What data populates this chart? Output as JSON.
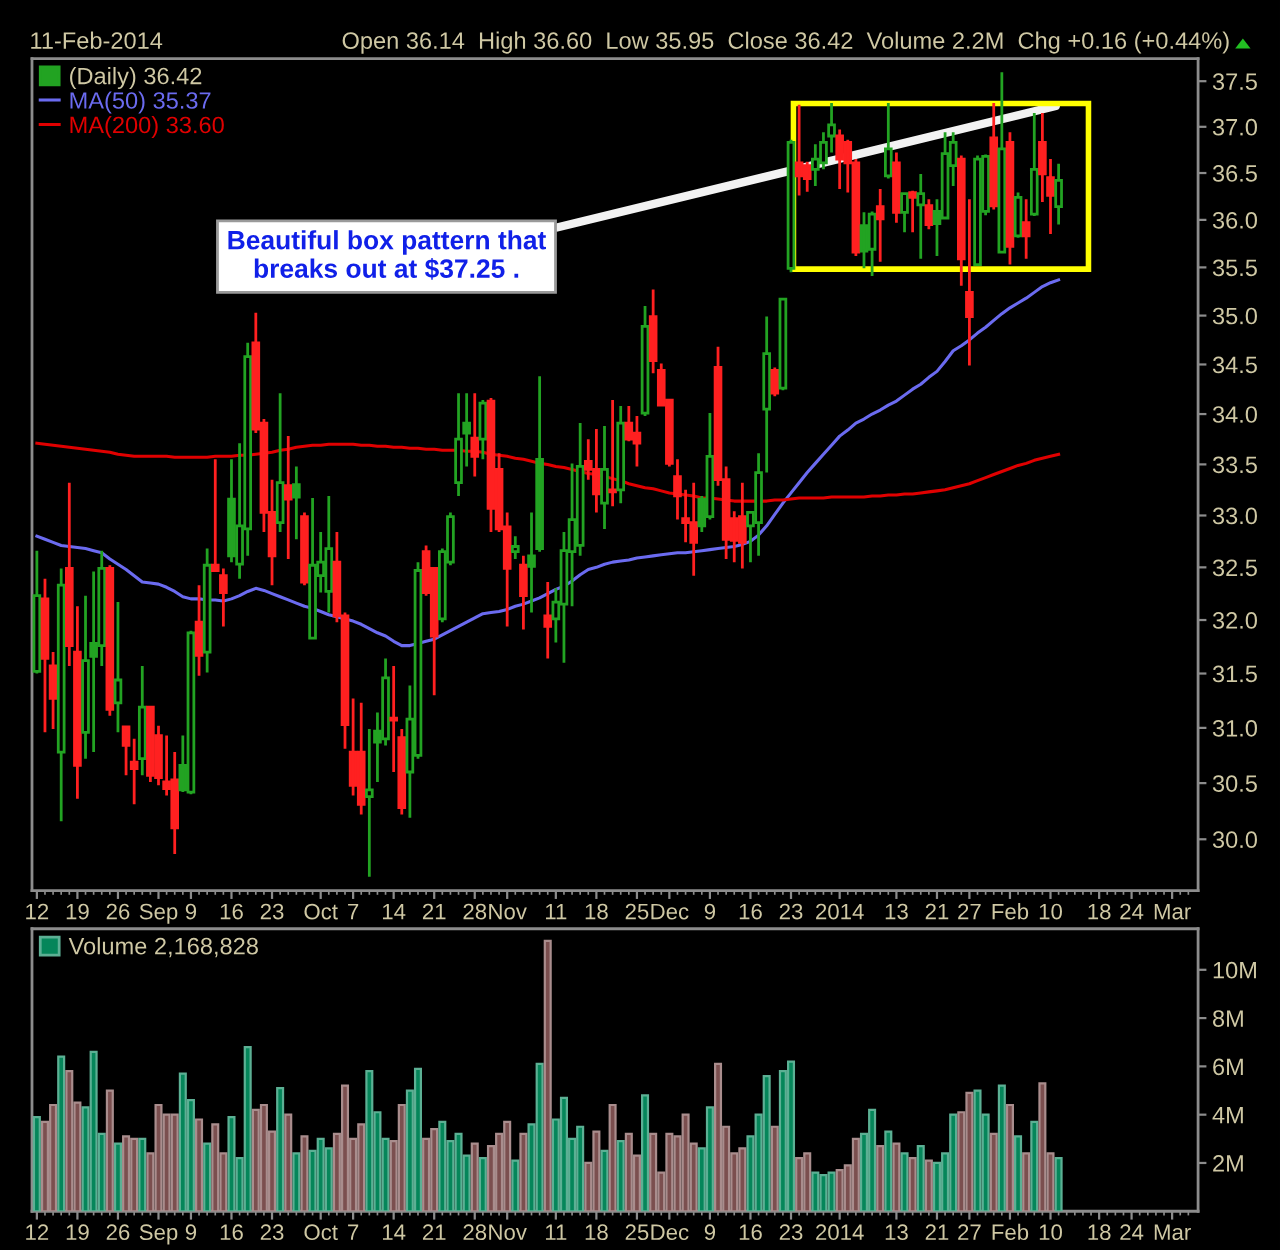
{
  "chart_data": [
    {
      "type": "candlestick",
      "subtitle": "11-Feb-2014",
      "log": true,
      "legend": "top left",
      "annotations": [
        "Open 36.14  High 36.60  Low 35.95  Close 36.42  Volume 2.2M  Chg +0.16 (+0.44%)",
        "Beautiful box pattern that\nbreaks out at $37.25 ."
      ],
      "categories": [
        "12",
        null,
        null,
        null,
        null,
        "19",
        null,
        null,
        null,
        null,
        "26",
        null,
        null,
        null,
        null,
        "Sep",
        null,
        null,
        null,
        "9",
        null,
        null,
        null,
        null,
        "16",
        null,
        null,
        null,
        null,
        "23",
        null,
        null,
        null,
        null,
        null,
        "Oct",
        null,
        null,
        null,
        "7",
        null,
        null,
        null,
        null,
        "14",
        null,
        null,
        null,
        null,
        "21",
        null,
        null,
        null,
        null,
        "28",
        null,
        null,
        null,
        "Nov",
        null,
        null,
        null,
        null,
        null,
        "11",
        null,
        null,
        null,
        null,
        "18",
        null,
        null,
        null,
        null,
        "25",
        null,
        null,
        null,
        "Dec",
        null,
        null,
        null,
        null,
        "9",
        null,
        null,
        null,
        null,
        "16",
        null,
        null,
        null,
        null,
        "23",
        null,
        null,
        null,
        null,
        null,
        "2014",
        null,
        null,
        null,
        null,
        null,
        null,
        "13",
        null,
        null,
        null,
        null,
        "21",
        null,
        null,
        null,
        "27",
        null,
        null,
        null,
        null,
        "Feb",
        null,
        null,
        null,
        null,
        "10",
        null,
        null,
        null,
        null,
        null,
        "18",
        null,
        null,
        null,
        "24",
        null,
        null,
        null,
        null,
        "Mar",
        null,
        null
      ],
      "ylim": [
        29.55,
        37.75
      ],
      "yticks": [
        {
          "value": 30,
          "label": "30.0"
        },
        30.5,
        {
          "value": 31,
          "label": "31.0"
        },
        31.5,
        {
          "value": 32,
          "label": "32.0"
        },
        32.5,
        {
          "value": 33,
          "label": "33.0"
        },
        33.5,
        {
          "value": 34,
          "label": "34.0"
        },
        34.5,
        {
          "value": 35,
          "label": "35.0"
        },
        35.5,
        {
          "value": 36,
          "label": "36.0"
        },
        36.5,
        {
          "value": 37,
          "label": "37.0"
        },
        37.5
      ],
      "series": [
        {
          "type": "candlestick",
          "name": "(Daily) 36.42",
          "ohlc": [
            [
              31.52,
              32.66,
              31.5,
              32.23
            ],
            [
              32.2,
              32.39,
              30.96,
              31.64
            ],
            [
              31.57,
              31.7,
              30.99,
              31.27
            ],
            [
              30.78,
              32.49,
              30.16,
              32.33
            ],
            [
              32.49,
              33.32,
              31.57,
              31.76
            ],
            [
              31.7,
              32.13,
              30.36,
              30.66
            ],
            [
              30.96,
              32.23,
              30.72,
              31.62
            ],
            [
              31.78,
              32.46,
              30.78,
              31.66
            ],
            [
              31.76,
              32.66,
              31.57,
              32.49
            ],
            [
              32.49,
              32.52,
              31.11,
              31.17
            ],
            [
              31.23,
              32.17,
              30.96,
              31.44
            ],
            [
              31.01,
              31.02,
              30.57,
              30.84
            ],
            [
              30.69,
              30.9,
              30.31,
              30.63
            ],
            [
              30.72,
              31.57,
              30.57,
              31.19
            ],
            [
              31.19,
              31.2,
              30.51,
              30.57
            ],
            [
              30.93,
              31.02,
              30.48,
              30.55
            ],
            [
              30.51,
              30.93,
              30.39,
              30.45
            ],
            [
              30.53,
              30.78,
              29.87,
              30.1
            ],
            [
              30.66,
              30.93,
              30.42,
              30.44
            ],
            [
              30.42,
              31.9,
              30.4,
              31.88
            ],
            [
              31.98,
              32.33,
              31.48,
              31.67
            ],
            [
              31.7,
              32.68,
              31.51,
              32.52
            ],
            [
              32.52,
              33.55,
              32.46,
              32.47
            ],
            [
              32.42,
              32.49,
              31.94,
              32.26
            ],
            [
              33.16,
              33.55,
              32.55,
              32.61
            ],
            [
              32.53,
              33.71,
              32.39,
              32.9
            ],
            [
              32.87,
              34.72,
              32.61,
              34.58
            ],
            [
              34.72,
              35.03,
              33.81,
              33.85
            ],
            [
              33.91,
              33.95,
              32.84,
              33.03
            ],
            [
              33.03,
              33.35,
              32.33,
              32.61
            ],
            [
              32.93,
              34.21,
              32.84,
              33.32
            ],
            [
              33.29,
              33.78,
              32.58,
              33.16
            ],
            [
              33.3,
              33.48,
              32.77,
              33.18
            ],
            [
              32.99,
              33.03,
              32.33,
              32.36
            ],
            [
              31.83,
              33.17,
              31.82,
              32.52
            ],
            [
              32.42,
              32.84,
              32.26,
              32.55
            ],
            [
              32.27,
              33.19,
              32.07,
              32.68
            ],
            [
              32.55,
              32.84,
              31.98,
              32.04
            ],
            [
              32.04,
              32.07,
              30.81,
              31.03
            ],
            [
              30.78,
              31.27,
              30.39,
              30.48
            ],
            [
              30.78,
              31.23,
              30.22,
              30.31
            ],
            [
              30.38,
              30.99,
              29.67,
              30.44
            ],
            [
              30.97,
              31.14,
              30.51,
              30.87
            ],
            [
              30.9,
              31.64,
              30.84,
              31.46
            ],
            [
              31.09,
              31.57,
              30.6,
              31.07
            ],
            [
              30.91,
              30.99,
              30.22,
              30.28
            ],
            [
              30.6,
              31.39,
              30.19,
              31.08
            ],
            [
              30.75,
              32.55,
              30.72,
              32.47
            ],
            [
              32.65,
              32.71,
              32.23,
              32.26
            ],
            [
              32.49,
              32.5,
              31.3,
              31.85
            ],
            [
              32.01,
              32.68,
              31.98,
              32.65
            ],
            [
              32.55,
              33.03,
              32.52,
              32.99
            ],
            [
              33.32,
              34.21,
              33.19,
              33.75
            ],
            [
              33.91,
              34.21,
              33.48,
              33.81
            ],
            [
              33.76,
              34.21,
              33.38,
              33.58
            ],
            [
              33.75,
              34.14,
              33.55,
              34.11
            ],
            [
              34.13,
              34.16,
              32.84,
              33.07
            ],
            [
              33.45,
              33.61,
              32.84,
              32.87
            ],
            [
              32.89,
              33.03,
              31.94,
              32.49
            ],
            [
              32.65,
              32.8,
              32.58,
              32.7
            ],
            [
              32.52,
              32.61,
              31.91,
              32.23
            ],
            [
              32.61,
              33.03,
              32.07,
              32.51
            ],
            [
              33.55,
              34.38,
              32.65,
              32.68
            ],
            [
              32.04,
              32.36,
              31.64,
              31.94
            ],
            [
              32.01,
              32.3,
              31.79,
              32.17
            ],
            [
              32.15,
              32.84,
              31.6,
              32.66
            ],
            [
              32.65,
              33.51,
              32.13,
              32.96
            ],
            [
              32.71,
              33.91,
              32.61,
              33.48
            ],
            [
              33.53,
              33.75,
              33.35,
              33.45
            ],
            [
              33.45,
              33.85,
              33.03,
              33.21
            ],
            [
              33.12,
              33.88,
              32.87,
              33.45
            ],
            [
              33.25,
              34.14,
              33.09,
              33.23
            ],
            [
              33.25,
              34.08,
              33.12,
              33.91
            ],
            [
              33.91,
              34.08,
              33.73,
              33.75
            ],
            [
              33.81,
              33.98,
              33.48,
              33.71
            ],
            [
              34.01,
              35.1,
              33.98,
              34.89
            ],
            [
              34.99,
              35.27,
              34.41,
              34.54
            ],
            [
              34.44,
              34.51,
              34.08,
              34.09
            ],
            [
              34.14,
              34.15,
              33.48,
              33.51
            ],
            [
              33.38,
              33.55,
              32.96,
              33.19
            ],
            [
              32.97,
              33.25,
              32.74,
              32.93
            ],
            [
              32.93,
              33.32,
              32.42,
              32.74
            ],
            [
              33.16,
              33.19,
              32.84,
              32.9
            ],
            [
              32.99,
              34.01,
              32.96,
              33.58
            ],
            [
              34.47,
              34.68,
              33.29,
              33.35
            ],
            [
              33.35,
              33.48,
              32.58,
              32.77
            ],
            [
              32.97,
              33.04,
              32.55,
              32.76
            ],
            [
              32.99,
              33.32,
              32.49,
              32.74
            ],
            [
              32.9,
              33.03,
              32.55,
              33.03
            ],
            [
              32.93,
              33.61,
              32.61,
              33.42
            ],
            [
              34.05,
              34.99,
              33.42,
              34.61
            ],
            [
              34.44,
              34.47,
              34.18,
              34.21
            ],
            [
              34.26,
              35.18,
              34.24,
              35.17
            ],
            [
              35.49,
              36.86,
              35.45,
              36.83
            ],
            [
              36.61,
              37.24,
              36.26,
              36.47
            ],
            [
              36.58,
              36.62,
              36.3,
              36.44
            ],
            [
              36.54,
              36.81,
              36.36,
              36.65
            ],
            [
              36.61,
              36.94,
              36.54,
              36.83
            ],
            [
              36.9,
              37.26,
              36.72,
              37.02
            ],
            [
              36.9,
              36.97,
              36.33,
              36.65
            ],
            [
              36.83,
              36.86,
              36.29,
              36.61
            ],
            [
              36.61,
              36.65,
              35.62,
              35.66
            ],
            [
              35.94,
              36.08,
              35.49,
              35.67
            ],
            [
              35.69,
              36.09,
              35.41,
              36.06
            ],
            [
              36.14,
              36.33,
              35.56,
              36.01
            ],
            [
              36.47,
              37.26,
              36.44,
              36.76
            ],
            [
              36.61,
              36.72,
              35.97,
              36.08
            ],
            [
              36.08,
              36.29,
              35.87,
              36.28
            ],
            [
              36.29,
              36.31,
              35.87,
              36.24
            ],
            [
              36.16,
              36.49,
              35.59,
              36.28
            ],
            [
              36.15,
              36.22,
              35.9,
              35.95
            ],
            [
              36.09,
              36.22,
              35.62,
              35.96
            ],
            [
              36.02,
              36.94,
              36.01,
              36.71
            ],
            [
              36.58,
              36.94,
              36.36,
              36.83
            ],
            [
              36.65,
              36.69,
              35.31,
              35.59
            ],
            [
              35.24,
              36.22,
              34.49,
              34.99
            ],
            [
              35.53,
              36.69,
              35.52,
              36.65
            ],
            [
              36.09,
              36.7,
              36.05,
              36.68
            ],
            [
              36.88,
              37.26,
              36.11,
              36.15
            ],
            [
              35.66,
              37.6,
              35.66,
              36.76
            ],
            [
              36.83,
              36.94,
              35.53,
              35.72
            ],
            [
              35.83,
              36.29,
              35.81,
              36.24
            ],
            [
              35.97,
              36.22,
              35.59,
              35.83
            ],
            [
              36.06,
              37.15,
              36.04,
              36.54
            ],
            [
              36.83,
              37.15,
              36.19,
              36.49
            ],
            [
              36.45,
              36.65,
              35.85,
              36.26
            ],
            [
              36.14,
              36.6,
              35.95,
              36.42
            ],
            null,
            null,
            null,
            null,
            null,
            null,
            null,
            null,
            null,
            null,
            null,
            null,
            null,
            null,
            null,
            null
          ],
          "colors": [
            "#22a322",
            "#ff2020",
            "#ff2020",
            "#22a322",
            "#ff2020",
            "#ff2020",
            "#22a322",
            "#22a322",
            "#22a322",
            "#ff2020",
            "#22a322",
            "#ff2020",
            "#ff2020",
            "#22a322",
            "#ff2020",
            "#ff2020",
            "#ff2020",
            "#ff2020",
            "#22a322",
            "#22a322",
            "#ff2020",
            "#22a322",
            "#ff2020",
            "#ff2020",
            "#22a322",
            "#22a322",
            "#22a322",
            "#ff2020",
            "#ff2020",
            "#ff2020",
            "#22a322",
            "#ff2020",
            "#22a322",
            "#ff2020",
            "#22a322",
            "#22a322",
            "#22a322",
            "#ff2020",
            "#ff2020",
            "#ff2020",
            "#ff2020",
            "#22a322",
            "#22a322",
            "#22a322",
            "#ff2020",
            "#ff2020",
            "#22a322",
            "#22a322",
            "#ff2020",
            "#ff2020",
            "#22a322",
            "#22a322",
            "#22a322",
            "#22a322",
            "#ff2020",
            "#22a322",
            "#ff2020",
            "#ff2020",
            "#ff2020",
            "#22a322",
            "#ff2020",
            "#22a322",
            "#22a322",
            "#ff2020",
            "#22a322",
            "#22a322",
            "#22a322",
            "#22a322",
            "#ff2020",
            "#ff2020",
            "#22a322",
            "#ff2020",
            "#22a322",
            "#ff2020",
            "#ff2020",
            "#22a322",
            "#ff2020",
            "#ff2020",
            "#ff2020",
            "#ff2020",
            "#ff2020",
            "#ff2020",
            "#22a322",
            "#22a322",
            "#ff2020",
            "#ff2020",
            "#ff2020",
            "#ff2020",
            "#22a322",
            "#22a322",
            "#22a322",
            "#ff2020",
            "#22a322",
            "#22a322",
            "#ff2020",
            "#ff2020",
            "#22a322",
            "#22a322",
            "#22a322",
            "#ff2020",
            "#ff2020",
            "#ff2020",
            "#22a322",
            "#22a322",
            "#ff2020",
            "#22a322",
            "#ff2020",
            "#22a322",
            "#ff2020",
            "#22a322",
            "#ff2020",
            "#22a322",
            "#22a322",
            "#22a322",
            "#ff2020",
            "#ff2020",
            "#22a322",
            "#22a322",
            "#ff2020",
            "#22a322",
            "#ff2020",
            "#22a322",
            "#ff2020",
            "#22a322",
            "#ff2020",
            "#ff2020",
            "#22a322",
            null,
            null,
            null,
            null,
            null,
            null,
            null,
            null,
            null,
            null,
            null,
            null,
            null,
            null,
            null,
            null
          ]
        },
        {
          "type": "line",
          "name": "MA(50) 35.37",
          "color": "#6b6bf0",
          "values": [
            32.8,
            32.77,
            32.74,
            32.71,
            32.7,
            32.69,
            32.68,
            32.66,
            32.64,
            32.58,
            32.53,
            32.48,
            32.42,
            32.36,
            32.35,
            32.34,
            32.31,
            32.27,
            32.22,
            32.2,
            32.2,
            32.19,
            32.19,
            32.18,
            32.2,
            32.23,
            32.27,
            32.3,
            32.28,
            32.25,
            32.22,
            32.19,
            32.16,
            32.13,
            32.11,
            32.08,
            32.05,
            32.03,
            32.01,
            31.99,
            31.96,
            31.92,
            31.88,
            31.85,
            31.8,
            31.76,
            31.76,
            31.78,
            31.8,
            31.82,
            31.86,
            31.9,
            31.94,
            31.98,
            32.02,
            32.06,
            32.07,
            32.08,
            32.1,
            32.13,
            32.15,
            32.18,
            32.21,
            32.25,
            32.29,
            32.32,
            32.37,
            32.43,
            32.48,
            32.5,
            32.53,
            32.55,
            32.56,
            32.57,
            32.59,
            32.6,
            32.61,
            32.62,
            32.63,
            32.64,
            32.64,
            32.65,
            32.66,
            32.67,
            32.68,
            32.69,
            32.7,
            32.72,
            32.75,
            32.81,
            32.9,
            33.01,
            33.12,
            33.22,
            33.32,
            33.42,
            33.51,
            33.6,
            33.69,
            33.78,
            33.84,
            33.91,
            33.95,
            34.0,
            34.04,
            34.09,
            34.13,
            34.19,
            34.25,
            34.3,
            34.37,
            34.43,
            34.53,
            34.64,
            34.69,
            34.75,
            34.82,
            34.88,
            34.95,
            35.02,
            35.08,
            35.13,
            35.18,
            35.24,
            35.3,
            35.34,
            35.37,
            null,
            null,
            null,
            null,
            null,
            null,
            null,
            null,
            null,
            null,
            null,
            null,
            null,
            null,
            null,
            null
          ]
        },
        {
          "type": "line",
          "name": "MA(200) 33.60",
          "color": "#e00000",
          "values": [
            33.71,
            33.7,
            33.69,
            33.68,
            33.67,
            33.66,
            33.65,
            33.64,
            33.63,
            33.62,
            33.6,
            33.59,
            33.58,
            33.58,
            33.58,
            33.58,
            33.58,
            33.57,
            33.57,
            33.57,
            33.57,
            33.57,
            33.58,
            33.58,
            33.58,
            33.59,
            33.59,
            33.6,
            33.61,
            33.62,
            33.64,
            33.65,
            33.67,
            33.68,
            33.69,
            33.69,
            33.7,
            33.7,
            33.7,
            33.7,
            33.69,
            33.69,
            33.68,
            33.68,
            33.67,
            33.67,
            33.66,
            33.66,
            33.65,
            33.65,
            33.64,
            33.64,
            33.64,
            33.63,
            33.63,
            33.62,
            33.6,
            33.59,
            33.58,
            33.56,
            33.55,
            33.53,
            33.51,
            33.5,
            33.48,
            33.47,
            33.45,
            33.43,
            33.41,
            33.4,
            33.38,
            33.36,
            33.34,
            33.31,
            33.29,
            33.27,
            33.26,
            33.24,
            33.22,
            33.21,
            33.2,
            33.19,
            33.17,
            33.17,
            33.16,
            33.15,
            33.14,
            33.14,
            33.14,
            33.14,
            33.14,
            33.15,
            33.15,
            33.16,
            33.17,
            33.17,
            33.17,
            33.17,
            33.18,
            33.18,
            33.18,
            33.18,
            33.18,
            33.19,
            33.19,
            33.2,
            33.2,
            33.21,
            33.21,
            33.22,
            33.23,
            33.24,
            33.25,
            33.27,
            33.29,
            33.31,
            33.34,
            33.37,
            33.4,
            33.43,
            33.46,
            33.49,
            33.51,
            33.54,
            33.56,
            33.58,
            33.6,
            null,
            null,
            null,
            null,
            null,
            null,
            null,
            null,
            null,
            null,
            null,
            null,
            null,
            null,
            null,
            null
          ]
        }
      ]
    },
    {
      "type": "bar",
      "legend": "top left",
      "categories": [
        "12",
        null,
        null,
        null,
        null,
        "19",
        null,
        null,
        null,
        null,
        "26",
        null,
        null,
        null,
        null,
        "Sep",
        null,
        null,
        null,
        "9",
        null,
        null,
        null,
        null,
        "16",
        null,
        null,
        null,
        null,
        "23",
        null,
        null,
        null,
        null,
        null,
        "Oct",
        null,
        null,
        null,
        "7",
        null,
        null,
        null,
        null,
        "14",
        null,
        null,
        null,
        null,
        "21",
        null,
        null,
        null,
        null,
        "28",
        null,
        null,
        null,
        "Nov",
        null,
        null,
        null,
        null,
        null,
        "11",
        null,
        null,
        null,
        null,
        "18",
        null,
        null,
        null,
        null,
        "25",
        null,
        null,
        null,
        "Dec",
        null,
        null,
        null,
        null,
        "9",
        null,
        null,
        null,
        null,
        "16",
        null,
        null,
        null,
        null,
        "23",
        null,
        null,
        null,
        null,
        null,
        "2014",
        null,
        null,
        null,
        null,
        null,
        null,
        "13",
        null,
        null,
        null,
        null,
        "21",
        null,
        null,
        null,
        "27",
        null,
        null,
        null,
        null,
        "Feb",
        null,
        null,
        null,
        null,
        "10",
        null,
        null,
        null,
        null,
        null,
        "18",
        null,
        null,
        null,
        "24",
        null,
        null,
        null,
        null,
        "Mar",
        null,
        null
      ],
      "ylim": [
        0,
        11.7
      ],
      "yticks": [
        {
          "value": 2,
          "label": "2M"
        },
        {
          "value": 4,
          "label": "4M"
        },
        {
          "value": 6,
          "label": "6M"
        },
        {
          "value": 8,
          "label": "8M"
        },
        {
          "value": 10,
          "label": "10M"
        }
      ],
      "series": [
        {
          "name": "Volume 2,168,828",
          "values": [
            3.9,
            3.7,
            4.4,
            6.4,
            5.8,
            4.5,
            4.3,
            6.6,
            3.2,
            5.0,
            2.8,
            3.1,
            3.0,
            3.0,
            2.4,
            4.4,
            4.0,
            4.0,
            5.7,
            4.6,
            3.8,
            2.8,
            3.6,
            2.4,
            3.9,
            2.2,
            6.8,
            4.2,
            4.4,
            3.3,
            5.1,
            4.0,
            2.4,
            3.1,
            2.5,
            3.0,
            2.6,
            3.2,
            5.2,
            3.0,
            3.6,
            5.8,
            4.1,
            3.0,
            2.9,
            4.4,
            5.0,
            5.9,
            3.0,
            3.4,
            3.7,
            2.9,
            3.2,
            2.3,
            2.8,
            2.2,
            2.7,
            3.2,
            3.7,
            2.1,
            3.2,
            3.6,
            6.1,
            11.2,
            3.8,
            4.7,
            3.0,
            3.5,
            2.0,
            3.3,
            2.5,
            4.4,
            2.9,
            3.2,
            2.3,
            4.8,
            3.2,
            1.6,
            3.2,
            3.1,
            4.0,
            2.8,
            2.6,
            4.3,
            6.1,
            3.5,
            2.4,
            2.6,
            3.1,
            4.0,
            5.6,
            3.5,
            5.8,
            6.2,
            2.2,
            2.4,
            1.6,
            1.5,
            1.6,
            1.7,
            1.9,
            3.0,
            3.2,
            4.2,
            2.7,
            3.3,
            2.8,
            2.4,
            2.2,
            2.7,
            2.1,
            2.0,
            2.4,
            4.0,
            4.1,
            4.9,
            5.0,
            4.0,
            3.2,
            5.2,
            4.4,
            3.1,
            2.4,
            3.7,
            5.3,
            2.4,
            2.2,
            null,
            null,
            null,
            null,
            null,
            null,
            null,
            null,
            null,
            null,
            null,
            null,
            null,
            null,
            null,
            null
          ],
          "colors": [
            "#05865a",
            "#7b4f4f",
            "#7b4f4f",
            "#05865a",
            "#7b4f4f",
            "#7b4f4f",
            "#05865a",
            "#05865a",
            "#05865a",
            "#7b4f4f",
            "#05865a",
            "#7b4f4f",
            "#7b4f4f",
            "#05865a",
            "#7b4f4f",
            "#7b4f4f",
            "#7b4f4f",
            "#7b4f4f",
            "#05865a",
            "#05865a",
            "#7b4f4f",
            "#05865a",
            "#7b4f4f",
            "#7b4f4f",
            "#05865a",
            "#05865a",
            "#05865a",
            "#7b4f4f",
            "#7b4f4f",
            "#7b4f4f",
            "#05865a",
            "#7b4f4f",
            "#05865a",
            "#7b4f4f",
            "#05865a",
            "#05865a",
            "#05865a",
            "#7b4f4f",
            "#7b4f4f",
            "#7b4f4f",
            "#7b4f4f",
            "#05865a",
            "#05865a",
            "#05865a",
            "#7b4f4f",
            "#7b4f4f",
            "#05865a",
            "#05865a",
            "#7b4f4f",
            "#7b4f4f",
            "#05865a",
            "#05865a",
            "#05865a",
            "#05865a",
            "#7b4f4f",
            "#05865a",
            "#7b4f4f",
            "#7b4f4f",
            "#7b4f4f",
            "#05865a",
            "#7b4f4f",
            "#05865a",
            "#05865a",
            "#7b4f4f",
            "#05865a",
            "#05865a",
            "#05865a",
            "#05865a",
            "#7b4f4f",
            "#7b4f4f",
            "#05865a",
            "#7b4f4f",
            "#05865a",
            "#7b4f4f",
            "#7b4f4f",
            "#05865a",
            "#7b4f4f",
            "#7b4f4f",
            "#7b4f4f",
            "#7b4f4f",
            "#7b4f4f",
            "#7b4f4f",
            "#05865a",
            "#05865a",
            "#7b4f4f",
            "#7b4f4f",
            "#7b4f4f",
            "#7b4f4f",
            "#05865a",
            "#05865a",
            "#05865a",
            "#7b4f4f",
            "#05865a",
            "#05865a",
            "#7b4f4f",
            "#7b4f4f",
            "#05865a",
            "#05865a",
            "#05865a",
            "#7b4f4f",
            "#7b4f4f",
            "#7b4f4f",
            "#05865a",
            "#05865a",
            "#7b4f4f",
            "#05865a",
            "#7b4f4f",
            "#05865a",
            "#7b4f4f",
            "#05865a",
            "#7b4f4f",
            "#05865a",
            "#05865a",
            "#05865a",
            "#7b4f4f",
            "#7b4f4f",
            "#05865a",
            "#05865a",
            "#7b4f4f",
            "#05865a",
            "#7b4f4f",
            "#05865a",
            "#7b4f4f",
            "#05865a",
            "#7b4f4f",
            "#7b4f4f",
            "#05865a",
            null,
            null,
            null,
            null,
            null,
            null,
            null,
            null,
            null,
            null,
            null,
            null,
            null,
            null,
            null,
            null
          ]
        }
      ]
    }
  ]
}
